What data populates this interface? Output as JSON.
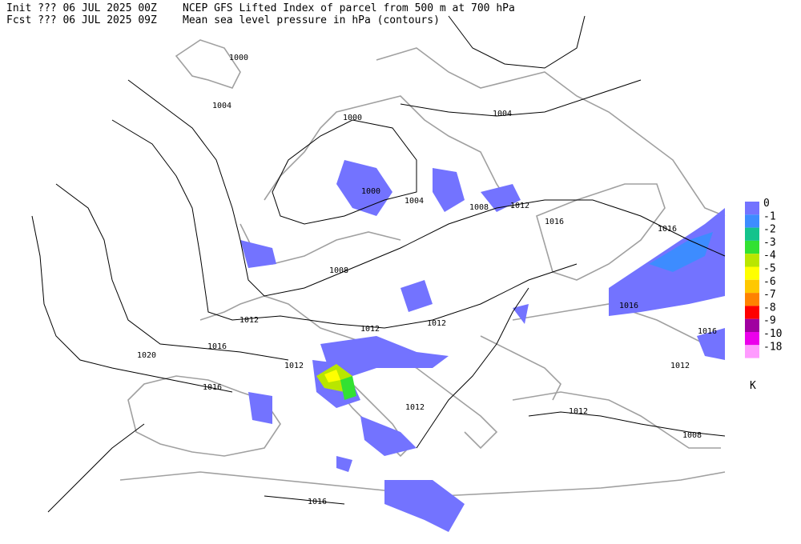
{
  "header": {
    "init": "Init  ??? 06 JUL 2025 00Z",
    "fcst": "Fcst ??? 06 JUL 2025 09Z",
    "title": "NCEP GFS Lifted Index of parcel from 500 m at 700 hPa",
    "subtitle": "Mean sea level pressure in hPa (contours)"
  },
  "contour_labels": [
    1000,
    1004,
    1000,
    1004,
    1000,
    1004,
    1008,
    1012,
    1016,
    1016,
    1008,
    1012,
    1012,
    1012,
    1016,
    1020,
    1012,
    1016,
    1016,
    1016,
    1012,
    1012,
    1012,
    1008,
    1016
  ],
  "legend": {
    "items": [
      {
        "label": 0,
        "color": "#7373ff"
      },
      {
        "label": -1,
        "color": "#3d8cff"
      },
      {
        "label": -2,
        "color": "#14c38c"
      },
      {
        "label": -3,
        "color": "#32e132"
      },
      {
        "label": -4,
        "color": "#b9e600"
      },
      {
        "label": -5,
        "color": "#ffff00"
      },
      {
        "label": -6,
        "color": "#ffc800"
      },
      {
        "label": -7,
        "color": "#ff8200"
      },
      {
        "label": -8,
        "color": "#ff0000"
      },
      {
        "label": -9,
        "color": "#a000a0"
      },
      {
        "label": -10,
        "color": "#eb00eb"
      },
      {
        "label": -18,
        "color": "#ff9bff"
      }
    ],
    "unit": "K"
  }
}
